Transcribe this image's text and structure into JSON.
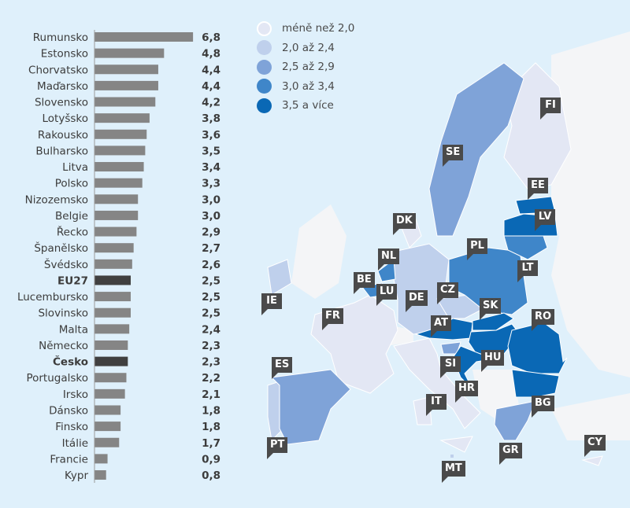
{
  "chart_data": {
    "type": "bar",
    "orientation": "horizontal",
    "categories": [
      "Rumunsko",
      "Estonsko",
      "Chorvatsko",
      "Maďarsko",
      "Slovensko",
      "Lotyšsko",
      "Rakousko",
      "Bulharsko",
      "Litva",
      "Polsko",
      "Nizozemsko",
      "Belgie",
      "Řecko",
      "Španělsko",
      "Švédsko",
      "EU27",
      "Lucembursko",
      "Slovinsko",
      "Malta",
      "Německo",
      "Česko",
      "Portugalsko",
      "Irsko",
      "Dánsko",
      "Finsko",
      "Itálie",
      "Francie",
      "Kypr"
    ],
    "values": [
      6.8,
      4.8,
      4.4,
      4.4,
      4.2,
      3.8,
      3.6,
      3.5,
      3.4,
      3.3,
      3.0,
      3.0,
      2.9,
      2.7,
      2.6,
      2.5,
      2.5,
      2.5,
      2.4,
      2.3,
      2.3,
      2.2,
      2.1,
      1.8,
      1.8,
      1.7,
      0.9,
      0.8
    ],
    "value_labels": [
      "6,8",
      "4,8",
      "4,4",
      "4,4",
      "4,2",
      "3,8",
      "3,6",
      "3,5",
      "3,4",
      "3,3",
      "3,0",
      "3,0",
      "2,9",
      "2,7",
      "2,6",
      "2,5",
      "2,5",
      "2,5",
      "2,4",
      "2,3",
      "2,3",
      "2,2",
      "2,1",
      "1,8",
      "1,8",
      "1,7",
      "0,9",
      "0,8"
    ],
    "highlighted": [
      "EU27",
      "Česko"
    ],
    "xlim": [
      0,
      7
    ],
    "colors": {
      "bar": "#858585",
      "highlight": "#404040"
    }
  },
  "legend": [
    {
      "label": "méně než 2,0",
      "color": "#e3e7f4"
    },
    {
      "label": "2,0 až 2,4",
      "color": "#bfd0ec"
    },
    {
      "label": "2,5 až 2,9",
      "color": "#7fa3d8"
    },
    {
      "label": "3,0 až 3,4",
      "color": "#3f86c9"
    },
    {
      "label": "3,5 a více",
      "color": "#0a68b5"
    }
  ],
  "map_labels": [
    "FI",
    "SE",
    "EE",
    "LV",
    "DK",
    "PL",
    "NL",
    "LT",
    "BE",
    "LU",
    "IE",
    "DE",
    "CZ",
    "FR",
    "SK",
    "AT",
    "RO",
    "ES",
    "SI",
    "HU",
    "IT",
    "HR",
    "BG",
    "PT",
    "GR",
    "CY",
    "MT"
  ]
}
